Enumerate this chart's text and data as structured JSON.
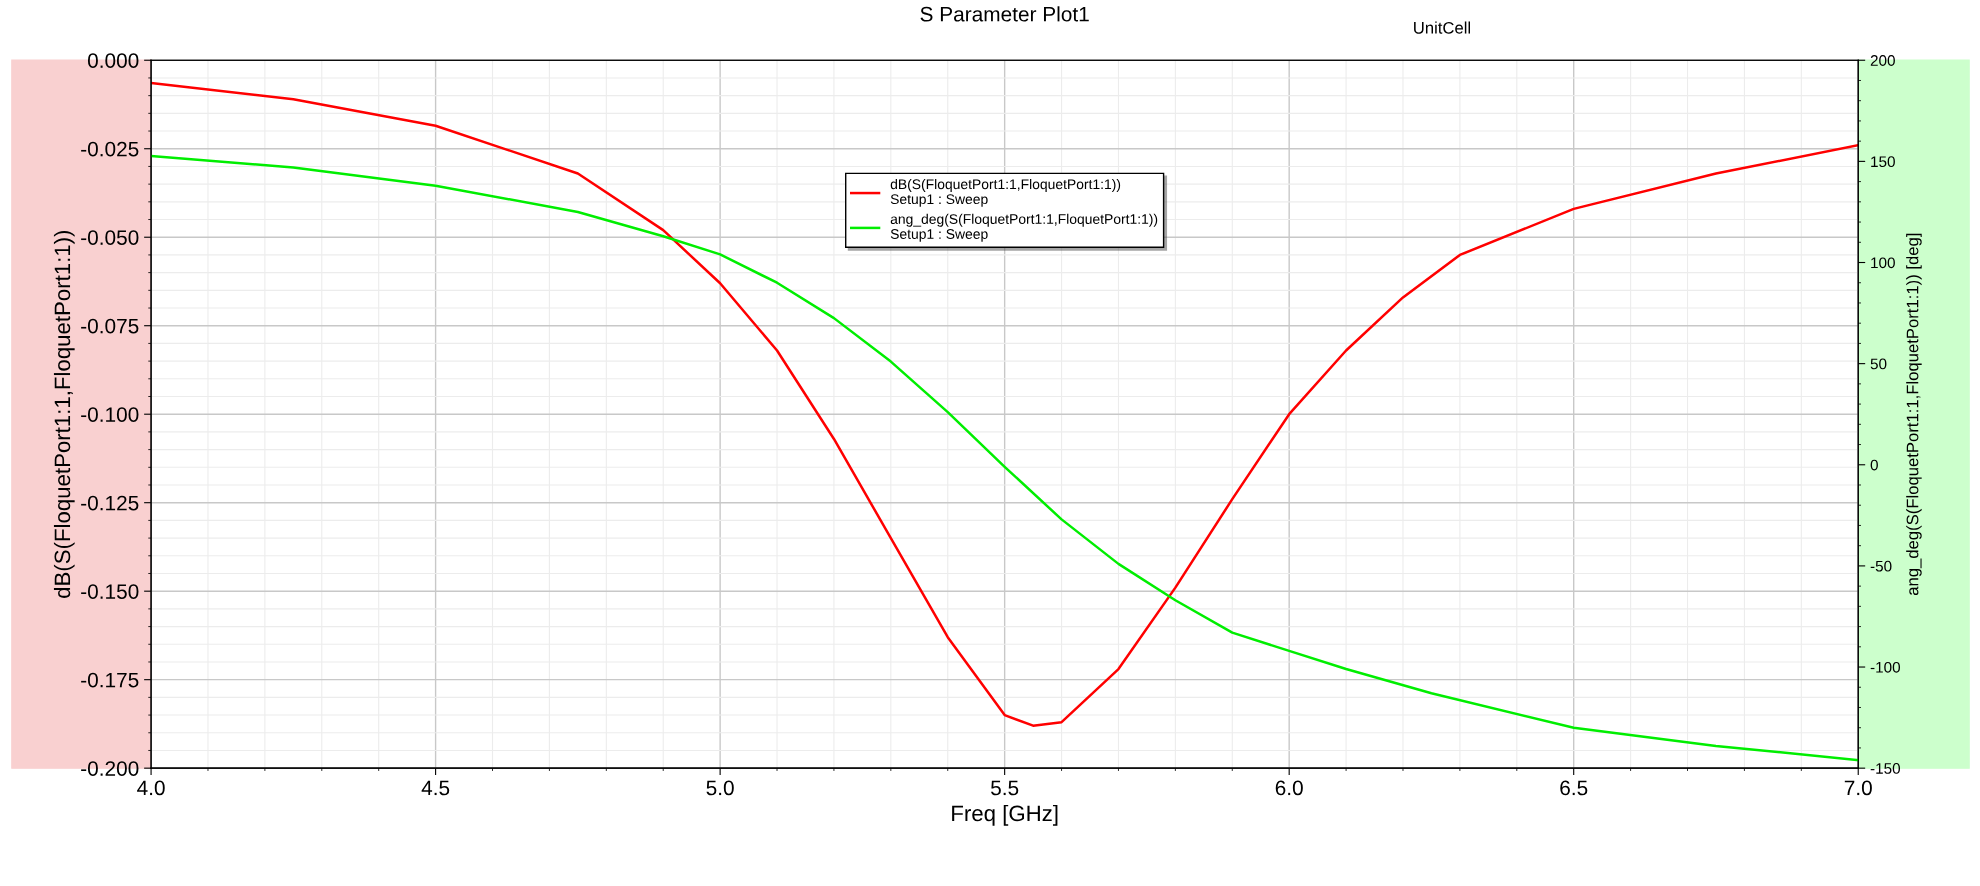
{
  "chart_data": {
    "type": "line",
    "title": "S Parameter Plot1",
    "xlabel": "Freq [GHz]",
    "ylabel": "dB(S(FloquetPort1:1,FloquetPort1:1))",
    "y2label": "ang_deg(S(FloquetPort1:1,FloquetPort1:1)) [deg]",
    "annotations": [
      "UnitCell"
    ],
    "xlim": [
      4.0,
      7.0
    ],
    "xticks": [
      {
        "value": 4.0,
        "label": "4.0"
      },
      {
        "value": 4.5,
        "label": "4.5"
      },
      {
        "value": 5.0,
        "label": "5.0"
      },
      {
        "value": 5.5,
        "label": "5.5"
      },
      {
        "value": 6.0,
        "label": "6.0"
      },
      {
        "value": 6.5,
        "label": "6.5"
      },
      {
        "value": 7.0,
        "label": "7.0"
      }
    ],
    "ylim": [
      -0.2,
      0.0
    ],
    "yticks": [
      {
        "value": -0.2,
        "label": "-0.200"
      },
      {
        "value": -0.175,
        "label": "-0.175"
      },
      {
        "value": -0.15,
        "label": "-0.150"
      },
      {
        "value": -0.125,
        "label": "-0.125"
      },
      {
        "value": -0.1,
        "label": "-0.100"
      },
      {
        "value": -0.075,
        "label": "-0.075"
      },
      {
        "value": -0.05,
        "label": "-0.050"
      },
      {
        "value": -0.025,
        "label": "-0.025"
      },
      {
        "value": 0.0,
        "label": "0.000"
      }
    ],
    "y2lim": [
      -150,
      200
    ],
    "y2ticks": [
      -150,
      -100,
      -50,
      0,
      50,
      100,
      150,
      200
    ],
    "grid": true,
    "legend": "top",
    "marker": "none",
    "line_style": "solid",
    "series": [
      {
        "name": "dB(S(FloquetPort1:1,FloquetPort1:1))\nSetup1 : Sweep",
        "color": "#ff0000",
        "x": [
          4.0,
          4.25,
          4.5,
          4.75,
          4.9,
          5.0,
          5.1,
          5.2,
          5.3,
          5.4,
          5.5,
          5.55,
          5.6,
          5.7,
          5.8,
          5.9,
          6.0,
          6.1,
          6.2,
          6.3,
          6.5,
          6.75,
          7.0
        ],
        "values": [
          -0.0064,
          -0.011,
          -0.0185,
          -0.032,
          -0.048,
          -0.063,
          -0.082,
          -0.107,
          -0.135,
          -0.163,
          -0.185,
          -0.188,
          -0.187,
          -0.172,
          -0.149,
          -0.124,
          -0.1,
          -0.082,
          -0.067,
          -0.055,
          -0.042,
          -0.032,
          -0.024
        ]
      },
      {
        "name": "ang_deg(S(FloquetPort1:1,FloquetPort1:1))\nSetup1 : Sweep",
        "color": "#00ee00",
        "axis": "y2",
        "x": [
          4.0,
          4.25,
          4.5,
          4.75,
          4.9,
          5.0,
          5.1,
          5.2,
          5.3,
          5.4,
          5.5,
          5.6,
          5.7,
          5.8,
          5.9,
          6.0,
          6.1,
          6.25,
          6.5,
          6.75,
          7.0
        ],
        "values": [
          152.7,
          147,
          138,
          125,
          113,
          104,
          90,
          72.5,
          51,
          26,
          -1,
          -27,
          -49,
          -67,
          -83,
          -92,
          -101,
          -113,
          -130,
          -139,
          -146
        ]
      }
    ]
  }
}
